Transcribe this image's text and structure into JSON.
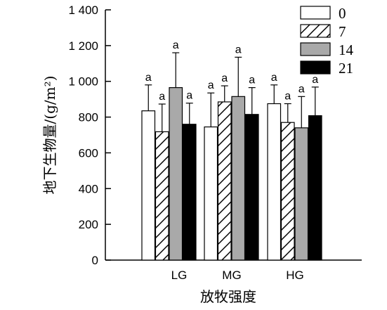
{
  "chart_data": {
    "type": "bar",
    "xlabel": "放牧强度",
    "ylabel": "地下生物量/(g/m²)",
    "ylim": [
      0,
      1400
    ],
    "yticks": [
      0,
      200,
      400,
      600,
      800,
      1000,
      1200,
      1400
    ],
    "ytick_labels": [
      "0",
      "200",
      "400",
      "600",
      "800",
      "1 000",
      "1 200",
      "1 400"
    ],
    "categories": [
      "LG",
      "MG",
      "HG"
    ],
    "grid": false,
    "legend_position": "top-right",
    "series": [
      {
        "name": "0",
        "pattern": "white",
        "values": [
          835,
          745,
          875
        ],
        "errors": [
          145,
          190,
          105
        ],
        "labels": [
          "a",
          "a",
          "a"
        ]
      },
      {
        "name": "7",
        "pattern": "hatch",
        "values": [
          718,
          885,
          770
        ],
        "errors": [
          155,
          90,
          105
        ],
        "labels": [
          "a",
          "a",
          "a"
        ]
      },
      {
        "name": "14",
        "pattern": "gray",
        "values": [
          965,
          915,
          740
        ],
        "errors": [
          195,
          220,
          175
        ],
        "labels": [
          "a",
          "a",
          "a"
        ]
      },
      {
        "name": "21",
        "pattern": "black",
        "values": [
          760,
          815,
          808
        ],
        "errors": [
          118,
          150,
          160
        ],
        "labels": [
          "a",
          "a",
          "a"
        ]
      }
    ],
    "colors": {
      "white": "#ffffff",
      "gray": "#a9a9a9",
      "black": "#000000",
      "stroke": "#000000"
    }
  }
}
